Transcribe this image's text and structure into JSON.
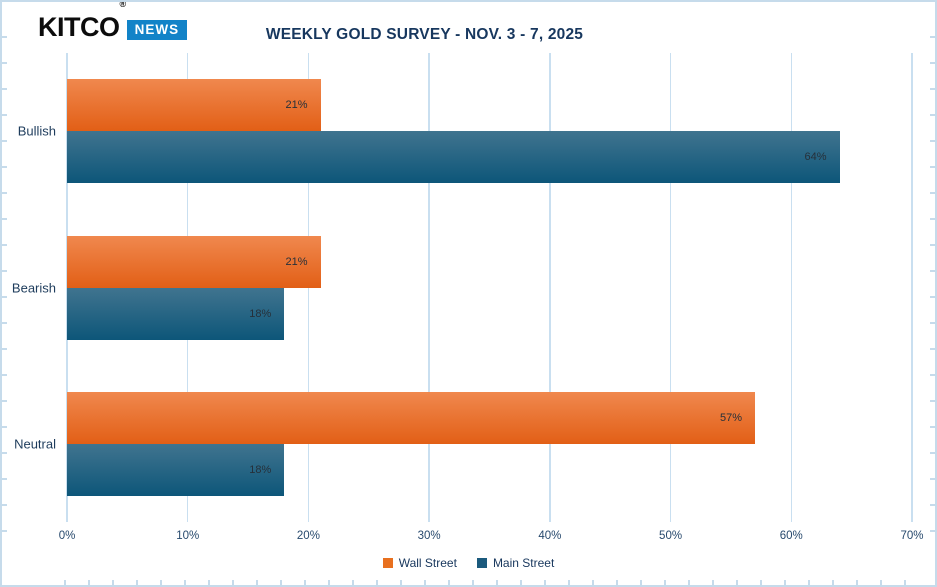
{
  "brand": {
    "wordmark": "KITCO",
    "registered": "®",
    "badge": "NEWS",
    "badge_color": "#1283c8"
  },
  "title": "WEEKLY GOLD SURVEY - NOV. 3 - 7, 2025",
  "chart_data": {
    "type": "bar",
    "orientation": "horizontal",
    "title": "WEEKLY GOLD SURVEY - NOV. 3 - 7, 2025",
    "categories": [
      "Bullish",
      "Bearish",
      "Neutral"
    ],
    "series": [
      {
        "name": "Wall Street",
        "color": "#e8701f",
        "gradient": [
          "#f0884e",
          "#e25f16"
        ],
        "values": [
          21,
          21,
          57
        ]
      },
      {
        "name": "Main Street",
        "color": "#1b5a7d",
        "gradient": [
          "#40748f",
          "#0d5679"
        ],
        "values": [
          64,
          18,
          18
        ]
      }
    ],
    "value_suffix": "%",
    "xlim": [
      0,
      70
    ],
    "x_ticks": [
      "0%",
      "10%",
      "20%",
      "30%",
      "40%",
      "50%",
      "60%",
      "70%"
    ],
    "grid": true,
    "gridline_color": "#c9dff0",
    "legend_position": "bottom"
  }
}
